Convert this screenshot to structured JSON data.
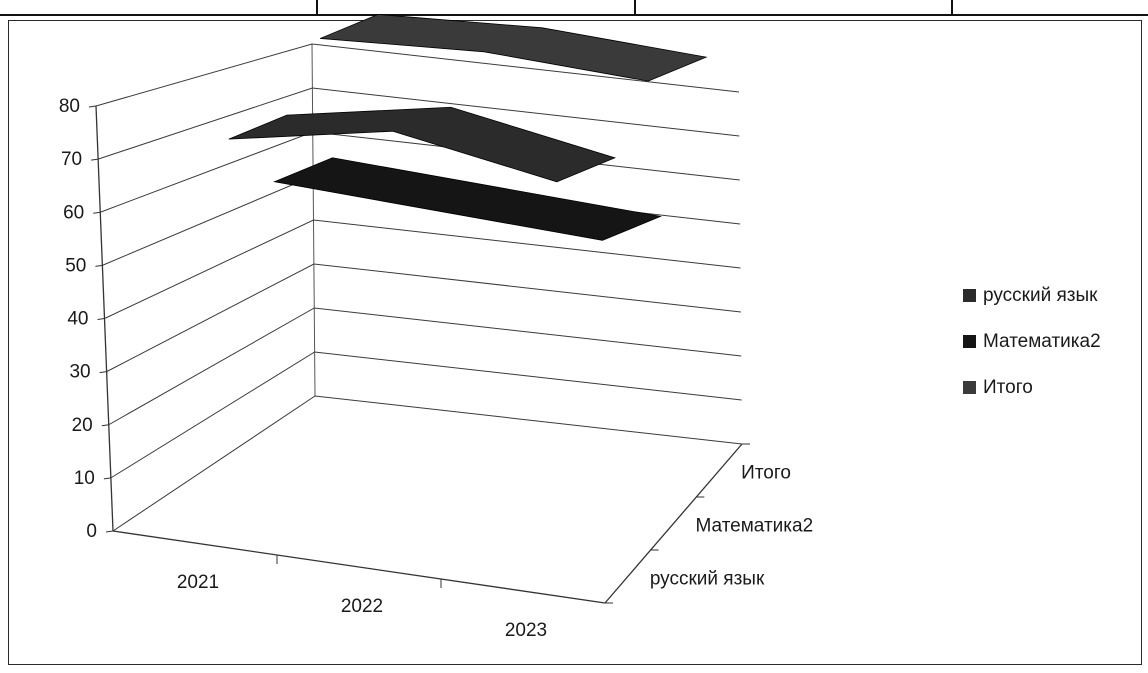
{
  "table_fragment": {
    "cells": [
      "",
      "",
      "",
      ""
    ]
  },
  "chart_data": {
    "type": "line",
    "title": "",
    "xlabel": "",
    "ylabel": "",
    "categories": [
      "2021",
      "2022",
      "2023"
    ],
    "depth_categories": [
      "русский язык",
      "Математика2",
      "Итого"
    ],
    "ylim": [
      0,
      80
    ],
    "y_ticks": [
      "0",
      "10",
      "20",
      "30",
      "40",
      "50",
      "60",
      "70",
      "80"
    ],
    "grid": true,
    "legend_position": "right",
    "series": [
      {
        "name": "русский язык",
        "values": [
          62,
          68,
          63
        ],
        "color": "#2b2b2b"
      },
      {
        "name": "Математика2",
        "values": [
          44,
          43,
          42
        ],
        "color": "#151515"
      },
      {
        "name": "Итого",
        "values": [
          61,
          63,
          62
        ],
        "color": "#3a3a3a"
      }
    ]
  }
}
